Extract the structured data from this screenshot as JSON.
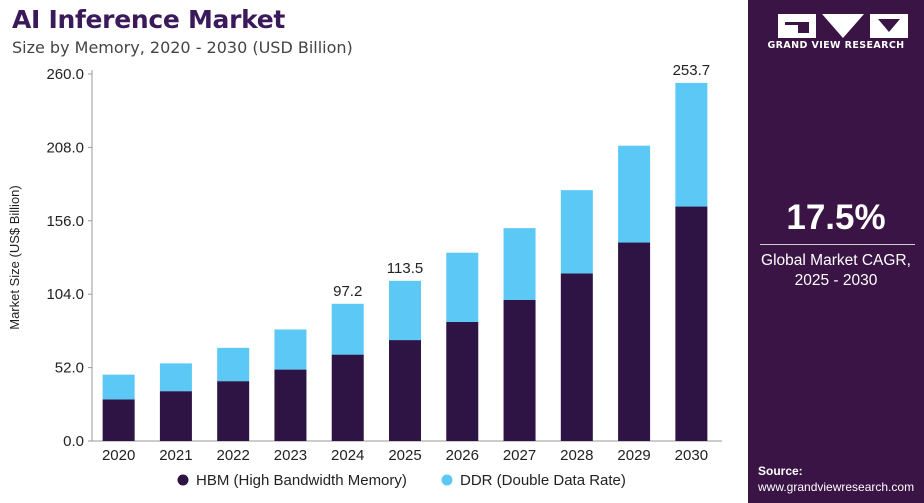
{
  "title": "AI Inference Market",
  "subtitle": "Size by Memory, 2020 - 2030 (USD Billion)",
  "brand": {
    "logo_text": "GRAND VIEW RESEARCH"
  },
  "cagr": {
    "value": "17.5%",
    "label_line1": "Global Market CAGR,",
    "label_line2": "2025 - 2030"
  },
  "source": {
    "title": "Source:",
    "url": "www.grandviewresearch.com"
  },
  "colors": {
    "hbm": "#2e1345",
    "ddr": "#5bc8f5",
    "panel": "#3a1445",
    "axis": "#999999"
  },
  "chart_data": {
    "type": "bar",
    "stacked": true,
    "ylabel": "Market Size (US$ Billion)",
    "xlabel": "",
    "ylim": [
      0,
      260
    ],
    "yticks": [
      "0.0",
      "52.0",
      "104.0",
      "156.0",
      "208.0",
      "260.0"
    ],
    "categories": [
      "2020",
      "2021",
      "2022",
      "2023",
      "2024",
      "2025",
      "2026",
      "2027",
      "2028",
      "2029",
      "2030"
    ],
    "series": [
      {
        "name": "HBM (High Bandwidth Memory)",
        "values": [
          29.5,
          35.3,
          42.4,
          50.6,
          61.2,
          71.5,
          84.3,
          100.0,
          118.7,
          140.6,
          166.1
        ]
      },
      {
        "name": "DDR (Double Data Rate)",
        "values": [
          17.5,
          19.7,
          23.6,
          28.4,
          36.0,
          42.0,
          49.1,
          50.8,
          59.0,
          68.6,
          87.6
        ]
      }
    ],
    "data_labels": [
      "",
      "",
      "",
      "",
      "97.2",
      "113.5",
      "",
      "",
      "",
      "",
      "253.7"
    ],
    "legend_position": "bottom"
  }
}
